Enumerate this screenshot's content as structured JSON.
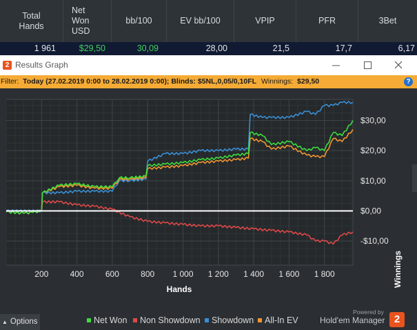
{
  "stats_table": {
    "headers": [
      "Total\nHands",
      "Net\nWon\nUSD",
      "bb/100",
      "EV bb/100",
      "VPIP",
      "PFR",
      "3Bet"
    ],
    "values": [
      "1 961",
      "$29,50",
      "30,09",
      "28,00",
      "21,5",
      "17,7",
      "6,17"
    ],
    "value_colors": [
      "#e6e6e6",
      "#44d15a",
      "#44d15a",
      "#e6e6e6",
      "#e6e6e6",
      "#e6e6e6",
      "#e6e6e6"
    ]
  },
  "window": {
    "title": "Results Graph",
    "filter_label": "Filter:",
    "filter_text": "Today (27.02.2019 0:00 to 28.02.2019 0:00); Blinds: $5NL,0,05/0,10FL",
    "winnings_label": "Winnings:",
    "winnings_value": "$29,50",
    "help_icon_text": "?",
    "app_icon_text": "2"
  },
  "footer": {
    "options_label": "Options",
    "powered_by": "Powered by",
    "brand": "Hold'em Manager",
    "brand_badge": "2"
  },
  "colors": {
    "net_won": "#3ddc3d",
    "non_showdown": "#e04848",
    "showdown": "#3a8fd6",
    "all_in_ev": "#f2952f",
    "filter_bar": "#f5ab35",
    "zero_line": "#ffffff"
  },
  "chart_data": {
    "type": "line",
    "xlabel": "Hands",
    "ylabel": "Winnings",
    "xlim": [
      0,
      1961
    ],
    "ylim": [
      -18,
      37
    ],
    "xticks": [
      200,
      400,
      600,
      800,
      1000,
      1200,
      1400,
      1600,
      1800
    ],
    "xtick_labels": [
      "200",
      "400",
      "600",
      "800",
      "1 000",
      "1 200",
      "1 400",
      "1 600",
      "1 800"
    ],
    "yticks": [
      30,
      20,
      10,
      0,
      -10
    ],
    "ytick_labels": [
      "$30,00",
      "$20,00",
      "$10,00",
      "$0,00",
      "-$10,00"
    ],
    "grid": true,
    "series": [
      {
        "name": "Net Won",
        "color": "#3ddc3d",
        "x": [
          0,
          100,
          150,
          200,
          205,
          300,
          400,
          500,
          600,
          640,
          700,
          790,
          800,
          900,
          1000,
          1100,
          1200,
          1300,
          1370,
          1380,
          1450,
          1500,
          1600,
          1700,
          1750,
          1800,
          1850,
          1900,
          1961
        ],
        "y": [
          -0.3,
          -0.8,
          -0.5,
          0,
          6,
          8.5,
          9,
          8,
          8,
          11,
          11,
          11.5,
          15,
          15.5,
          16,
          17,
          17.5,
          18.5,
          19,
          26,
          25,
          22,
          23,
          20,
          21,
          20,
          26,
          25,
          30
        ]
      },
      {
        "name": "Non Showdown",
        "color": "#e04848",
        "x": [
          0,
          100,
          150,
          200,
          205,
          300,
          400,
          500,
          600,
          700,
          800,
          900,
          1000,
          1100,
          1200,
          1300,
          1400,
          1500,
          1600,
          1700,
          1750,
          1800,
          1850,
          1900,
          1961
        ],
        "y": [
          -0.3,
          -0.8,
          -0.5,
          0,
          3,
          3,
          2,
          1.5,
          0.5,
          -2,
          -3.5,
          -4,
          -4.5,
          -5,
          -5,
          -5.5,
          -6,
          -6.5,
          -7,
          -8,
          -10,
          -10,
          -11,
          -8,
          -7
        ]
      },
      {
        "name": "Showdown",
        "color": "#3a8fd6",
        "x": [
          0,
          200,
          205,
          300,
          400,
          500,
          600,
          640,
          700,
          790,
          800,
          900,
          1000,
          1100,
          1200,
          1300,
          1370,
          1380,
          1450,
          1500,
          1600,
          1700,
          1750,
          1800,
          1850,
          1900,
          1961
        ],
        "y": [
          0,
          0,
          6,
          6,
          6.5,
          6.5,
          6.5,
          10,
          10,
          10.5,
          16.5,
          19,
          19,
          20,
          20,
          20.5,
          20.5,
          32,
          31,
          31,
          31,
          33,
          32,
          35,
          35,
          36,
          36
        ]
      },
      {
        "name": "All-In EV",
        "color": "#f2952f",
        "x": [
          0,
          100,
          150,
          200,
          205,
          300,
          400,
          500,
          600,
          640,
          700,
          790,
          800,
          900,
          1000,
          1100,
          1200,
          1300,
          1370,
          1380,
          1450,
          1500,
          1600,
          1700,
          1750,
          1800,
          1850,
          1900,
          1961
        ],
        "y": [
          -0.3,
          -0.8,
          -0.5,
          0,
          6,
          8,
          8.5,
          7.5,
          7.5,
          10.5,
          10.5,
          11,
          14,
          14.5,
          15,
          16,
          16.5,
          17,
          17.5,
          24,
          23,
          20.5,
          21.5,
          18.5,
          18,
          18,
          24,
          23,
          27
        ]
      }
    ]
  }
}
